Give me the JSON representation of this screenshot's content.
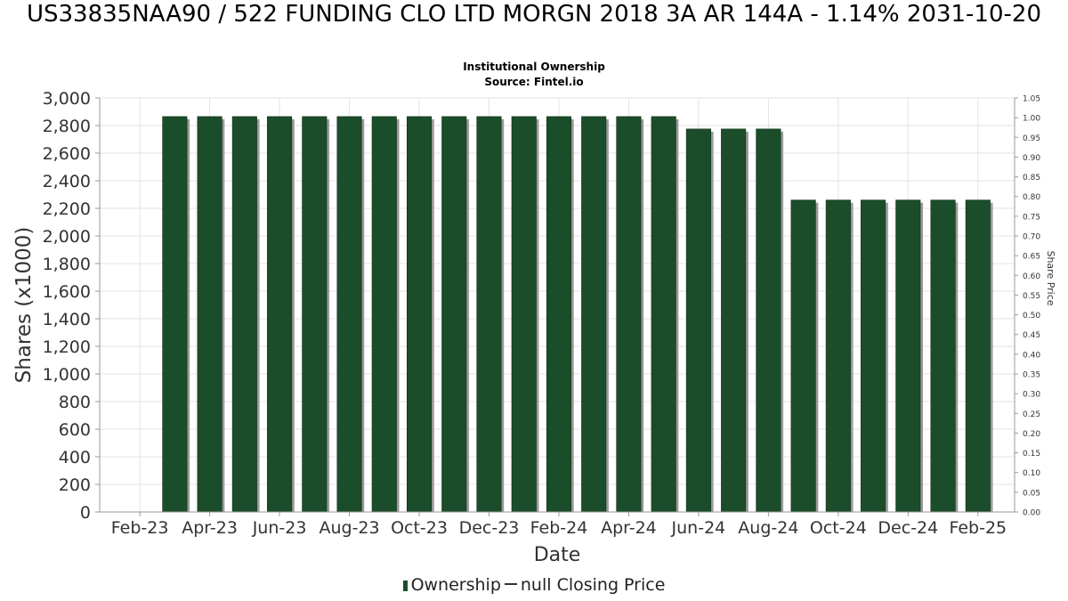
{
  "header": {
    "title": "US33835NAA90 / 522 FUNDING CLO LTD MORGN 2018 3A AR 144A - 1.14% 2031-10-20",
    "subtitle": "Institutional Ownership",
    "source": "Source: Fintel.io"
  },
  "legend": {
    "ownership_label": "Ownership",
    "price_label": "null Closing Price"
  },
  "colors": {
    "bar": "#1b4d2a",
    "bar_shadow": "#9a9a9a",
    "grid": "#e3e3e3"
  },
  "chart_data": {
    "type": "bar",
    "xlabel": "Date",
    "ylabel": "Shares (x1000)",
    "y2label": "Share Price",
    "ylim": [
      0,
      3000
    ],
    "y2lim": [
      0,
      1.05
    ],
    "yticks": [
      "0",
      "200",
      "400",
      "600",
      "800",
      "1,000",
      "1,200",
      "1,400",
      "1,600",
      "1,800",
      "2,000",
      "2,200",
      "2,400",
      "2,600",
      "2,800",
      "3,000"
    ],
    "y2ticks": [
      "0.00",
      "0.05",
      "0.10",
      "0.15",
      "0.20",
      "0.25",
      "0.30",
      "0.35",
      "0.40",
      "0.45",
      "0.50",
      "0.55",
      "0.60",
      "0.65",
      "0.70",
      "0.75",
      "0.80",
      "0.85",
      "0.90",
      "0.95",
      "1.00",
      "1.05"
    ],
    "xticks": [
      "Feb-23",
      "Apr-23",
      "Jun-23",
      "Aug-23",
      "Oct-23",
      "Dec-23",
      "Feb-24",
      "Apr-24",
      "Jun-24",
      "Aug-24",
      "Oct-24",
      "Dec-24",
      "Feb-25"
    ],
    "grid": true,
    "legend_position": "bottom",
    "series": [
      {
        "name": "Ownership",
        "x": [
          "2023-03",
          "2023-04",
          "2023-05",
          "2023-06",
          "2023-07",
          "2023-08",
          "2023-09",
          "2023-10",
          "2023-11",
          "2023-12",
          "2024-01",
          "2024-02",
          "2024-03",
          "2024-04",
          "2024-05",
          "2024-06",
          "2024-07",
          "2024-08",
          "2024-09",
          "2024-10",
          "2024-11",
          "2024-12",
          "2025-01",
          "2025-02"
        ],
        "values": [
          2865,
          2865,
          2865,
          2865,
          2865,
          2865,
          2865,
          2865,
          2865,
          2865,
          2865,
          2865,
          2865,
          2865,
          2865,
          2775,
          2775,
          2775,
          2260,
          2260,
          2260,
          2260,
          2260,
          2260
        ]
      }
    ]
  }
}
